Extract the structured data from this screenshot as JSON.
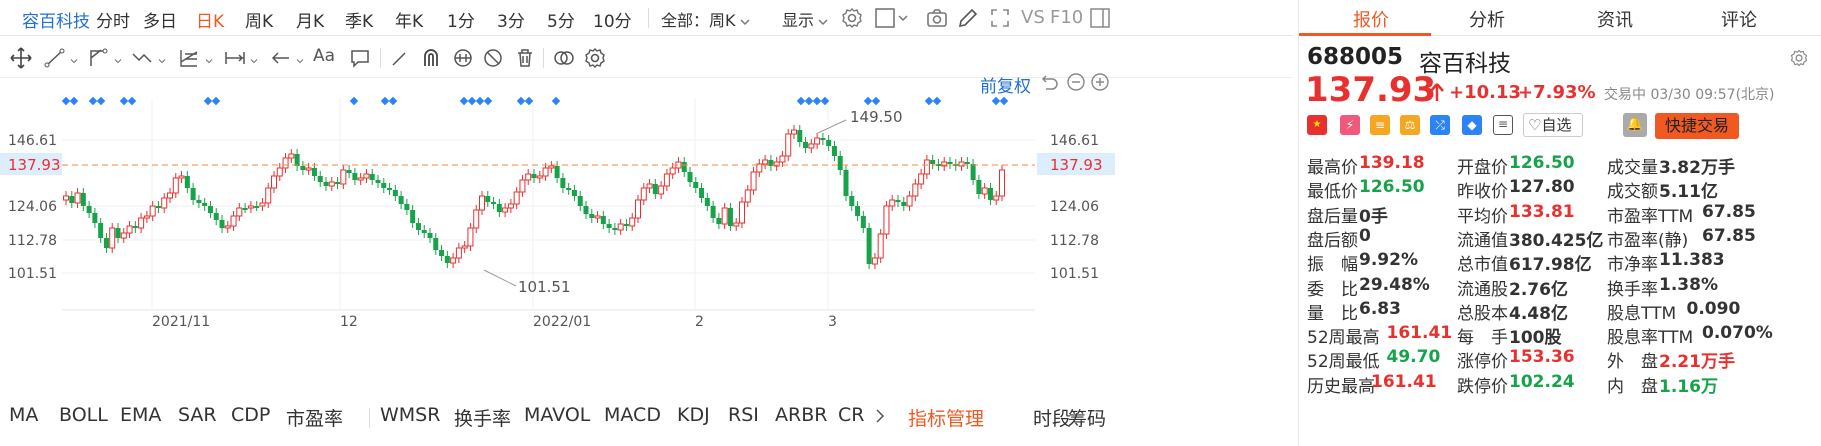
{
  "topbar": {
    "stock_name": "容百科技",
    "periods": [
      "分时",
      "多日",
      "日K",
      "周K",
      "月K",
      "季K",
      "年K",
      "1分",
      "3分",
      "5分",
      "10分"
    ],
    "active_period": "日K",
    "period_select": "全部：周K",
    "display_label": "显示",
    "vs_label": "VS",
    "f10_label": "F10"
  },
  "chart": {
    "adjust_label": "前复权",
    "y_ticks": [
      "146.61",
      "137.93",
      "124.06",
      "112.78",
      "101.51"
    ],
    "x_ticks": [
      "2021/11",
      "12",
      "2022/01",
      "2",
      "3"
    ],
    "high_label": "149.50",
    "low_label": "101.51",
    "current_price_label": "137.93"
  },
  "bottom_tabs": {
    "items": [
      "MA",
      "BOLL",
      "EMA",
      "SAR",
      "CDP",
      "市盈率",
      "WMSR",
      "换手率",
      "MAVOL",
      "MACD",
      "KDJ",
      "RSI",
      "ARBR",
      "CR"
    ],
    "manage_label": "指标管理",
    "extra": [
      "时段",
      "筹码"
    ]
  },
  "right_panel": {
    "tabs": [
      "报价",
      "分析",
      "资讯",
      "评论"
    ],
    "active_tab": "报价",
    "code": "688005",
    "name": "容百科技",
    "price": "137.93",
    "change": "+10.13",
    "change_pct": "+7.93%",
    "trade_status": "交易中 03/30 09:57(北京)",
    "watchlist_label": "自选",
    "trade_button": "快捷交易",
    "stats": [
      [
        {
          "label": "最高价",
          "value": "139.18",
          "c": "up"
        },
        {
          "label": "开盘价",
          "value": "126.50",
          "c": "down"
        },
        {
          "label": "成交量",
          "value": "3.82万手",
          "c": "neutral"
        }
      ],
      [
        {
          "label": "最低价",
          "value": "126.50",
          "c": "down"
        },
        {
          "label": "昨收价",
          "value": "127.80",
          "c": "neutral"
        },
        {
          "label": "成交额",
          "value": "5.11亿",
          "c": "neutral"
        }
      ],
      [
        {
          "label": "盘后量",
          "value": "0手",
          "c": "neutral"
        },
        {
          "label": "平均价",
          "value": "133.81",
          "c": "up"
        },
        {
          "label": "市盈率TTM",
          "value": "67.85",
          "c": "neutral"
        }
      ],
      [
        {
          "label": "盘后额",
          "value": "0",
          "c": "neutral"
        },
        {
          "label": "流通值",
          "value": "380.425亿",
          "c": "neutral"
        },
        {
          "label": "市盈率(静)",
          "value": "67.85",
          "c": "neutral"
        }
      ],
      [
        {
          "label": "振　幅",
          "value": "9.92%",
          "c": "neutral"
        },
        {
          "label": "总市值",
          "value": "617.98亿",
          "c": "neutral"
        },
        {
          "label": "市净率",
          "value": "11.383",
          "c": "neutral"
        }
      ],
      [
        {
          "label": "委　比",
          "value": "29.48%",
          "c": "neutral"
        },
        {
          "label": "流通股",
          "value": "2.76亿",
          "c": "neutral"
        },
        {
          "label": "换手率",
          "value": "1.38%",
          "c": "neutral"
        }
      ],
      [
        {
          "label": "量　比",
          "value": "6.83",
          "c": "neutral"
        },
        {
          "label": "总股本",
          "value": "4.48亿",
          "c": "neutral"
        },
        {
          "label": "股息TTM",
          "value": "0.090",
          "c": "neutral"
        }
      ],
      [
        {
          "label": "52周最高",
          "value": "161.41",
          "c": "up"
        },
        {
          "label": "每　手",
          "value": "100股",
          "c": "neutral"
        },
        {
          "label": "股息率TTM",
          "value": "0.070%",
          "c": "neutral"
        }
      ],
      [
        {
          "label": "52周最低",
          "value": "49.70",
          "c": "down"
        },
        {
          "label": "涨停价",
          "value": "153.36",
          "c": "up"
        },
        {
          "label": "外　盘",
          "value": "2.21万手",
          "c": "up"
        }
      ],
      [
        {
          "label": "历史最高",
          "value": "161.41",
          "c": "up"
        },
        {
          "label": "跌停价",
          "value": "102.24",
          "c": "down"
        },
        {
          "label": "内　盘",
          "value": "1.16万",
          "c": "down"
        }
      ]
    ]
  },
  "colors": {
    "up": "#e8312f",
    "down": "#16a34a",
    "accent": "#f05a22",
    "link": "#1f6fd6",
    "dot": "#2b83f6",
    "price_line": "#f08b3c"
  }
}
